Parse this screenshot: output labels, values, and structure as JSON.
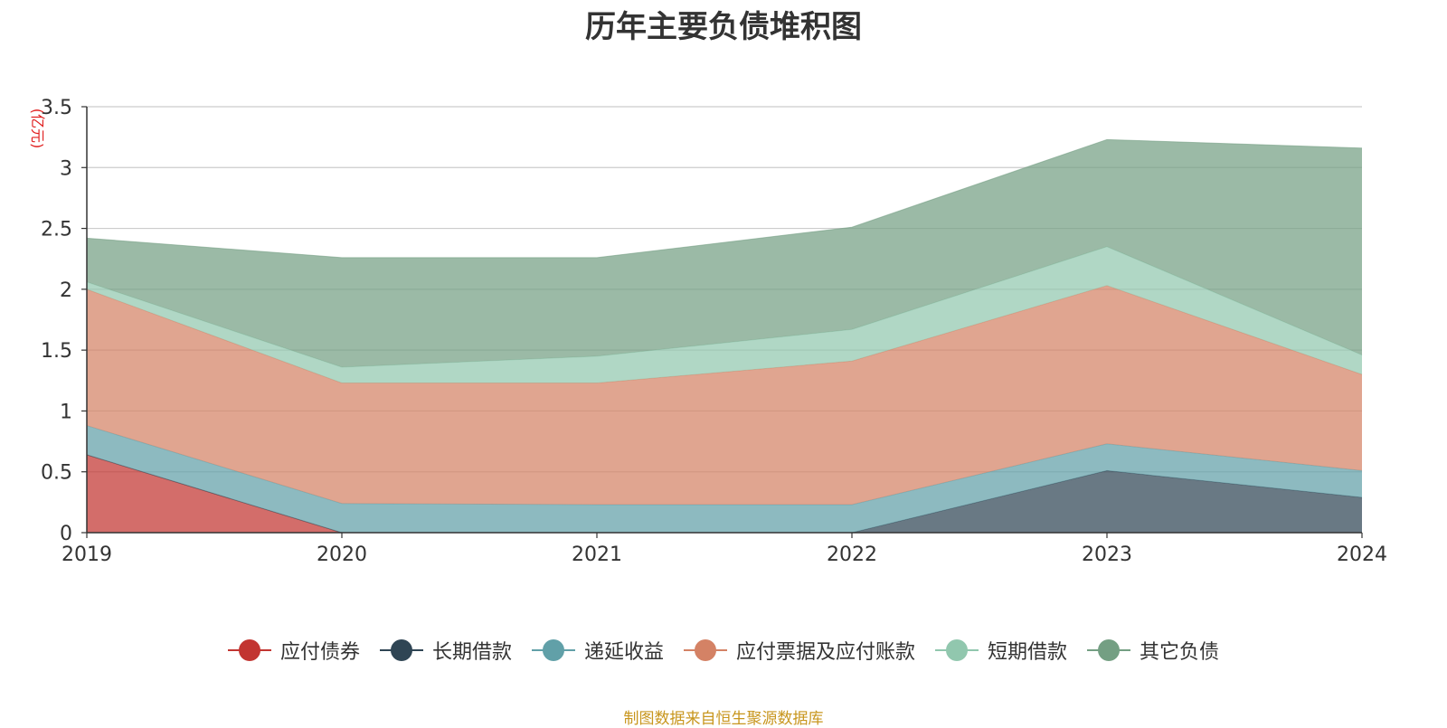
{
  "chart_data": {
    "type": "area",
    "title": "历年主要负债堆积图",
    "ylabel": "(亿元)",
    "x": [
      "2019",
      "2020",
      "2021",
      "2022",
      "2023",
      "2024"
    ],
    "ylim": [
      0,
      3.5
    ],
    "yticks": [
      "0",
      "0.5",
      "1",
      "1.5",
      "2",
      "2.5",
      "3",
      "3.5"
    ],
    "stacked": true,
    "grid": true,
    "legend_position": "bottom",
    "series": [
      {
        "name": "应付债券",
        "color": "#c23531",
        "values": [
          0.64,
          0,
          0,
          0,
          0,
          0
        ]
      },
      {
        "name": "长期借款",
        "color": "#2f4554",
        "values": [
          0,
          0,
          0,
          0,
          0.51,
          0.29
        ]
      },
      {
        "name": "递延收益",
        "color": "#61a0a8",
        "values": [
          0.24,
          0.24,
          0.23,
          0.23,
          0.22,
          0.22
        ]
      },
      {
        "name": "应付票据及应付账款",
        "color": "#d48265",
        "values": [
          1.12,
          0.99,
          1.0,
          1.18,
          1.3,
          0.79
        ]
      },
      {
        "name": "短期借款",
        "color": "#91c7ae",
        "values": [
          0.06,
          0.13,
          0.22,
          0.26,
          0.32,
          0.16
        ]
      },
      {
        "name": "其它负债",
        "color": "#749f83",
        "values": [
          0.36,
          0.9,
          0.81,
          0.84,
          0.88,
          1.7
        ]
      }
    ]
  },
  "footer": {
    "source": "制图数据来自恒生聚源数据库"
  }
}
